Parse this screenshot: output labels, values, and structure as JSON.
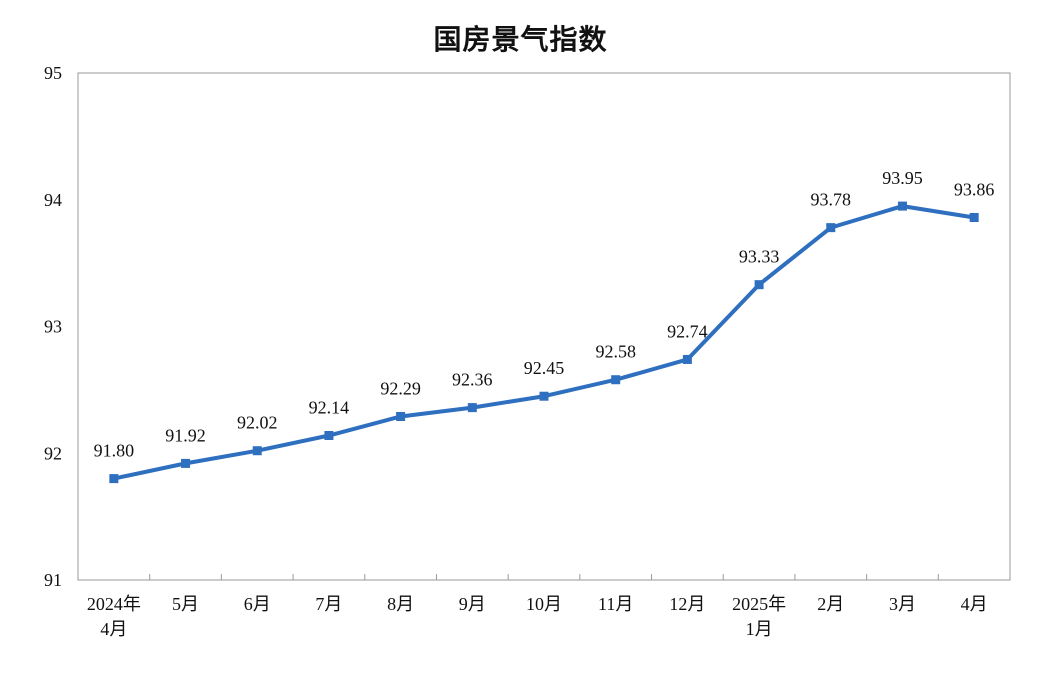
{
  "chart_data": {
    "type": "line",
    "title": "国房景气指数",
    "xlabel": "",
    "ylabel": "",
    "categories": [
      [
        "2024年",
        "4月"
      ],
      [
        "5月"
      ],
      [
        "6月"
      ],
      [
        "7月"
      ],
      [
        "8月"
      ],
      [
        "9月"
      ],
      [
        "10月"
      ],
      [
        "11月"
      ],
      [
        "12月"
      ],
      [
        "2025年",
        "1月"
      ],
      [
        "2月"
      ],
      [
        "3月"
      ],
      [
        "4月"
      ]
    ],
    "series": [
      {
        "values": [
          91.8,
          91.92,
          92.02,
          92.14,
          92.29,
          92.36,
          92.45,
          92.58,
          92.74,
          93.33,
          93.78,
          93.95,
          93.86
        ],
        "labels": [
          "91.80",
          "91.92",
          "92.02",
          "92.14",
          "92.29",
          "92.36",
          "92.45",
          "92.58",
          "92.74",
          "93.33",
          "93.78",
          "93.95",
          "93.86"
        ],
        "color": "#2e6fc0"
      }
    ],
    "ylim": [
      91,
      95
    ],
    "yticks": [
      "91",
      "92",
      "93",
      "94",
      "95"
    ],
    "grid": false,
    "legend": "none",
    "frame_color": "#9a9a9a"
  }
}
